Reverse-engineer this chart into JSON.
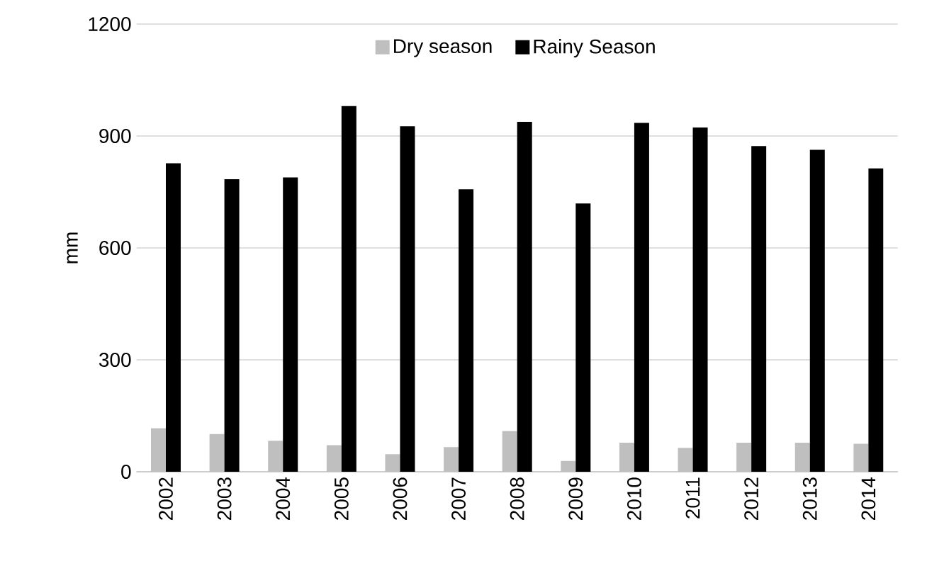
{
  "chart_data": {
    "type": "bar",
    "ylabel": "mm",
    "categories": [
      "2002",
      "2003",
      "2004",
      "2005",
      "2006",
      "2007",
      "2008",
      "2009",
      "2010",
      "2011",
      "2012",
      "2013",
      "2014"
    ],
    "series": [
      {
        "name": "Dry season",
        "color": "#bfbfbf",
        "values": [
          117,
          101,
          83,
          71,
          47,
          66,
          109,
          29,
          78,
          64,
          78,
          78,
          75
        ]
      },
      {
        "name": "Rainy Season",
        "color": "#000000",
        "values": [
          827,
          784,
          789,
          980,
          926,
          757,
          938,
          719,
          935,
          923,
          873,
          863,
          813
        ]
      }
    ],
    "ylim": [
      0,
      1200
    ],
    "yticks": [
      0,
      300,
      600,
      900,
      1200
    ],
    "grid": "y",
    "legend": "top"
  }
}
